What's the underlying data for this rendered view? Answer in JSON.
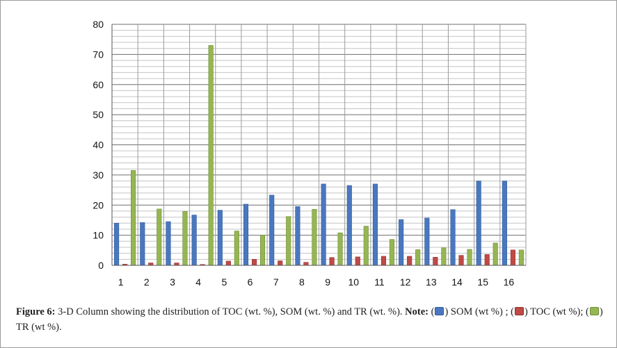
{
  "chart_data": {
    "type": "bar",
    "title": "",
    "xlabel": "",
    "ylabel": "",
    "ylim": [
      0,
      80
    ],
    "yticks": [
      0,
      10,
      20,
      30,
      40,
      50,
      60,
      70,
      80
    ],
    "grid": true,
    "categories": [
      "1",
      "2",
      "3",
      "4",
      "5",
      "6",
      "7",
      "8",
      "9",
      "10",
      "11",
      "12",
      "13",
      "14",
      "15",
      "16"
    ],
    "series": [
      {
        "values": [
          14,
          14.2,
          14.5,
          16.7,
          18.3,
          20.3,
          23.3,
          19.5,
          27,
          26.5,
          27,
          15.2,
          15.7,
          18.5,
          28,
          28
        ]
      },
      {
        "values": [
          0.4,
          0.8,
          0.8,
          0.3,
          1.4,
          2,
          1.5,
          1,
          2.6,
          2.8,
          3,
          3,
          2.7,
          3.3,
          3.6,
          5.1
        ]
      },
      {
        "values": [
          31.5,
          18.7,
          17.9,
          73,
          11.4,
          10,
          16.2,
          18.6,
          10.8,
          13,
          8.6,
          5.2,
          5.8,
          5.3,
          7.4,
          5.1
        ]
      }
    ],
    "colors": [
      "#4a78bf",
      "#bf4a46",
      "#95b652"
    ],
    "legend": "none"
  },
  "caption": {
    "label": "Figure 6:",
    "text": " 3-D Column showing the distribution of TOC (wt. %), SOM (wt. %) and TR (wt. %). ",
    "note_label": "Note:",
    "item1_open": " (",
    "item1_text": ") SOM (wt %) ; (",
    "item2_text": ") TOC (wt %); (",
    "item3_text": ") TR (wt %)."
  }
}
